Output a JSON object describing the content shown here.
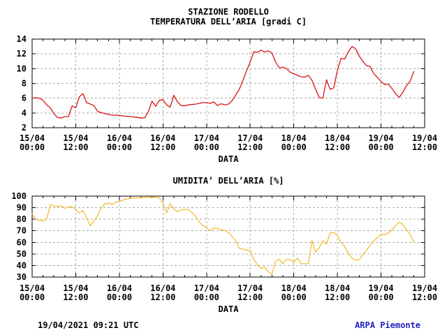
{
  "header": {
    "station_title": "STAZIONE RODELLO"
  },
  "footer": {
    "timestamp": "19/04/2021 09:21 UTC",
    "brand": "ARPA Piemonte",
    "brand_color": "#2222c0"
  },
  "colors": {
    "grid": "#a8a8a8",
    "axis": "#000000",
    "background": "#ffffff"
  },
  "chart_data": [
    {
      "type": "line",
      "title": "TEMPERATURA DELL’ARIA [gradi C]",
      "xlabel": "DATA",
      "ylim": [
        2,
        14
      ],
      "yticks": [
        2,
        4,
        6,
        8,
        10,
        12,
        14
      ],
      "grid": true,
      "legend": false,
      "x_axis": {
        "start_hour": 0,
        "end_hour": 108,
        "major_tick_hours": 12,
        "minor_tick_hours": 3,
        "tick_labels": [
          [
            "15/04",
            "00:00"
          ],
          [
            "15/04",
            "12:00"
          ],
          [
            "16/04",
            "00:00"
          ],
          [
            "16/04",
            "12:00"
          ],
          [
            "17/04",
            "00:00"
          ],
          [
            "17/04",
            "12:00"
          ],
          [
            "18/04",
            "00:00"
          ],
          [
            "18/04",
            "12:00"
          ],
          [
            "19/04",
            "00:00"
          ],
          [
            "19/04",
            "12:00"
          ]
        ]
      },
      "series": [
        {
          "name": "temperatura-aria",
          "color": "#d81414",
          "start_hour": 0,
          "x_step_hours": 1,
          "values": [
            6.0,
            6.05,
            6.0,
            5.7,
            5.1,
            4.7,
            3.9,
            3.4,
            3.3,
            3.5,
            3.5,
            4.95,
            4.7,
            6.2,
            6.6,
            5.4,
            5.2,
            5.0,
            4.2,
            4.05,
            3.9,
            3.8,
            3.7,
            3.7,
            3.65,
            3.6,
            3.55,
            3.5,
            3.45,
            3.4,
            3.3,
            3.35,
            4.2,
            5.6,
            4.9,
            5.7,
            5.8,
            5.1,
            4.8,
            6.4,
            5.5,
            5.0,
            4.95,
            5.1,
            5.15,
            5.2,
            5.3,
            5.4,
            5.4,
            5.3,
            5.5,
            5.0,
            5.25,
            5.1,
            5.2,
            5.65,
            6.4,
            7.2,
            8.4,
            9.7,
            10.9,
            12.3,
            12.2,
            12.5,
            12.25,
            12.4,
            12.1,
            10.9,
            10.1,
            10.2,
            10.0,
            9.5,
            9.3,
            9.1,
            8.9,
            8.85,
            9.1,
            8.4,
            7.2,
            6.1,
            6.0,
            8.5,
            7.2,
            7.4,
            9.8,
            11.4,
            11.3,
            12.3,
            13.0,
            12.7,
            11.7,
            11.0,
            10.4,
            10.3,
            9.3,
            8.8,
            8.25,
            7.85,
            7.9,
            7.3,
            6.6,
            6.1,
            6.8,
            7.7,
            8.3,
            9.6
          ]
        }
      ]
    },
    {
      "type": "line",
      "title": "UMIDITA’ DELL’ARIA [%]",
      "xlabel": "DATA",
      "ylim": [
        30,
        100
      ],
      "yticks": [
        30,
        40,
        50,
        60,
        70,
        80,
        90,
        100
      ],
      "grid": true,
      "legend": false,
      "x_axis": {
        "start_hour": 0,
        "end_hour": 108,
        "major_tick_hours": 12,
        "minor_tick_hours": 3,
        "tick_labels": [
          [
            "15/04",
            "00:00"
          ],
          [
            "15/04",
            "12:00"
          ],
          [
            "16/04",
            "00:00"
          ],
          [
            "16/04",
            "12:00"
          ],
          [
            "17/04",
            "00:00"
          ],
          [
            "17/04",
            "12:00"
          ],
          [
            "18/04",
            "00:00"
          ],
          [
            "18/04",
            "12:00"
          ],
          [
            "19/04",
            "00:00"
          ],
          [
            "19/04",
            "12:00"
          ]
        ]
      },
      "series": [
        {
          "name": "umidita-aria",
          "color": "#f2be35",
          "start_hour": 0,
          "x_step_hours": 1,
          "values": [
            84.5,
            80,
            79,
            78.5,
            80,
            92.5,
            91.5,
            91,
            91.5,
            89.5,
            90.5,
            91,
            88.5,
            85.5,
            87.5,
            81,
            74.5,
            78.5,
            83,
            90,
            93.5,
            94,
            93,
            94.5,
            95.5,
            96.5,
            97.5,
            98,
            98.5,
            98.5,
            98.5,
            99,
            99,
            99,
            99,
            98.5,
            94,
            85.5,
            93.5,
            89,
            86.5,
            88,
            88.5,
            88.5,
            85.5,
            82.5,
            77.5,
            74.5,
            72.5,
            70,
            72.5,
            72,
            71,
            70.5,
            68.5,
            65,
            61.5,
            55,
            54,
            53.5,
            53,
            45.5,
            40.5,
            37.5,
            38.5,
            34.5,
            32.5,
            43.5,
            45.5,
            41.5,
            45.5,
            45,
            42.5,
            46.5,
            41.5,
            41.5,
            41.5,
            62,
            51.5,
            55.5,
            61.5,
            58.5,
            68,
            68.5,
            66,
            60,
            56.5,
            50.5,
            46.5,
            44.5,
            45,
            49.5,
            53,
            57.5,
            61,
            64.5,
            67,
            66.5,
            68,
            71,
            74.5,
            77.5,
            75.5,
            71,
            67,
            60
          ]
        }
      ]
    }
  ]
}
